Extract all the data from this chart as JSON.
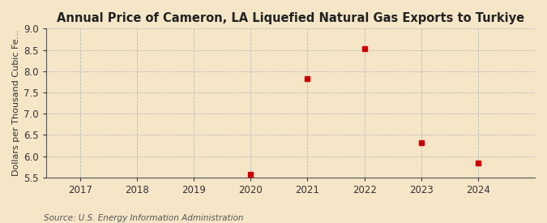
{
  "title": "Annual Price of Cameron, LA Liquefied Natural Gas Exports to Turkiye",
  "ylabel": "Dollars per Thousand Cubic Fe...",
  "source": "Source: U.S. Energy Information Administration",
  "background_color": "#f5e6c8",
  "plot_background_color": "#f5e6c8",
  "years": [
    2020,
    2021,
    2022,
    2023,
    2024
  ],
  "values": [
    5.58,
    7.83,
    8.53,
    6.32,
    5.84
  ],
  "x_ticks": [
    2017,
    2018,
    2019,
    2020,
    2021,
    2022,
    2023,
    2024
  ],
  "xlim": [
    2016.4,
    2025.0
  ],
  "ylim": [
    5.5,
    9.0
  ],
  "yticks": [
    5.5,
    6.0,
    6.5,
    7.0,
    7.5,
    8.0,
    8.5,
    9.0
  ],
  "marker_color": "#cc0000",
  "marker_size": 4,
  "grid_color": "#bbbbbb",
  "title_fontsize": 10.5,
  "axis_fontsize": 8.5,
  "ylabel_fontsize": 8,
  "source_fontsize": 7.5
}
